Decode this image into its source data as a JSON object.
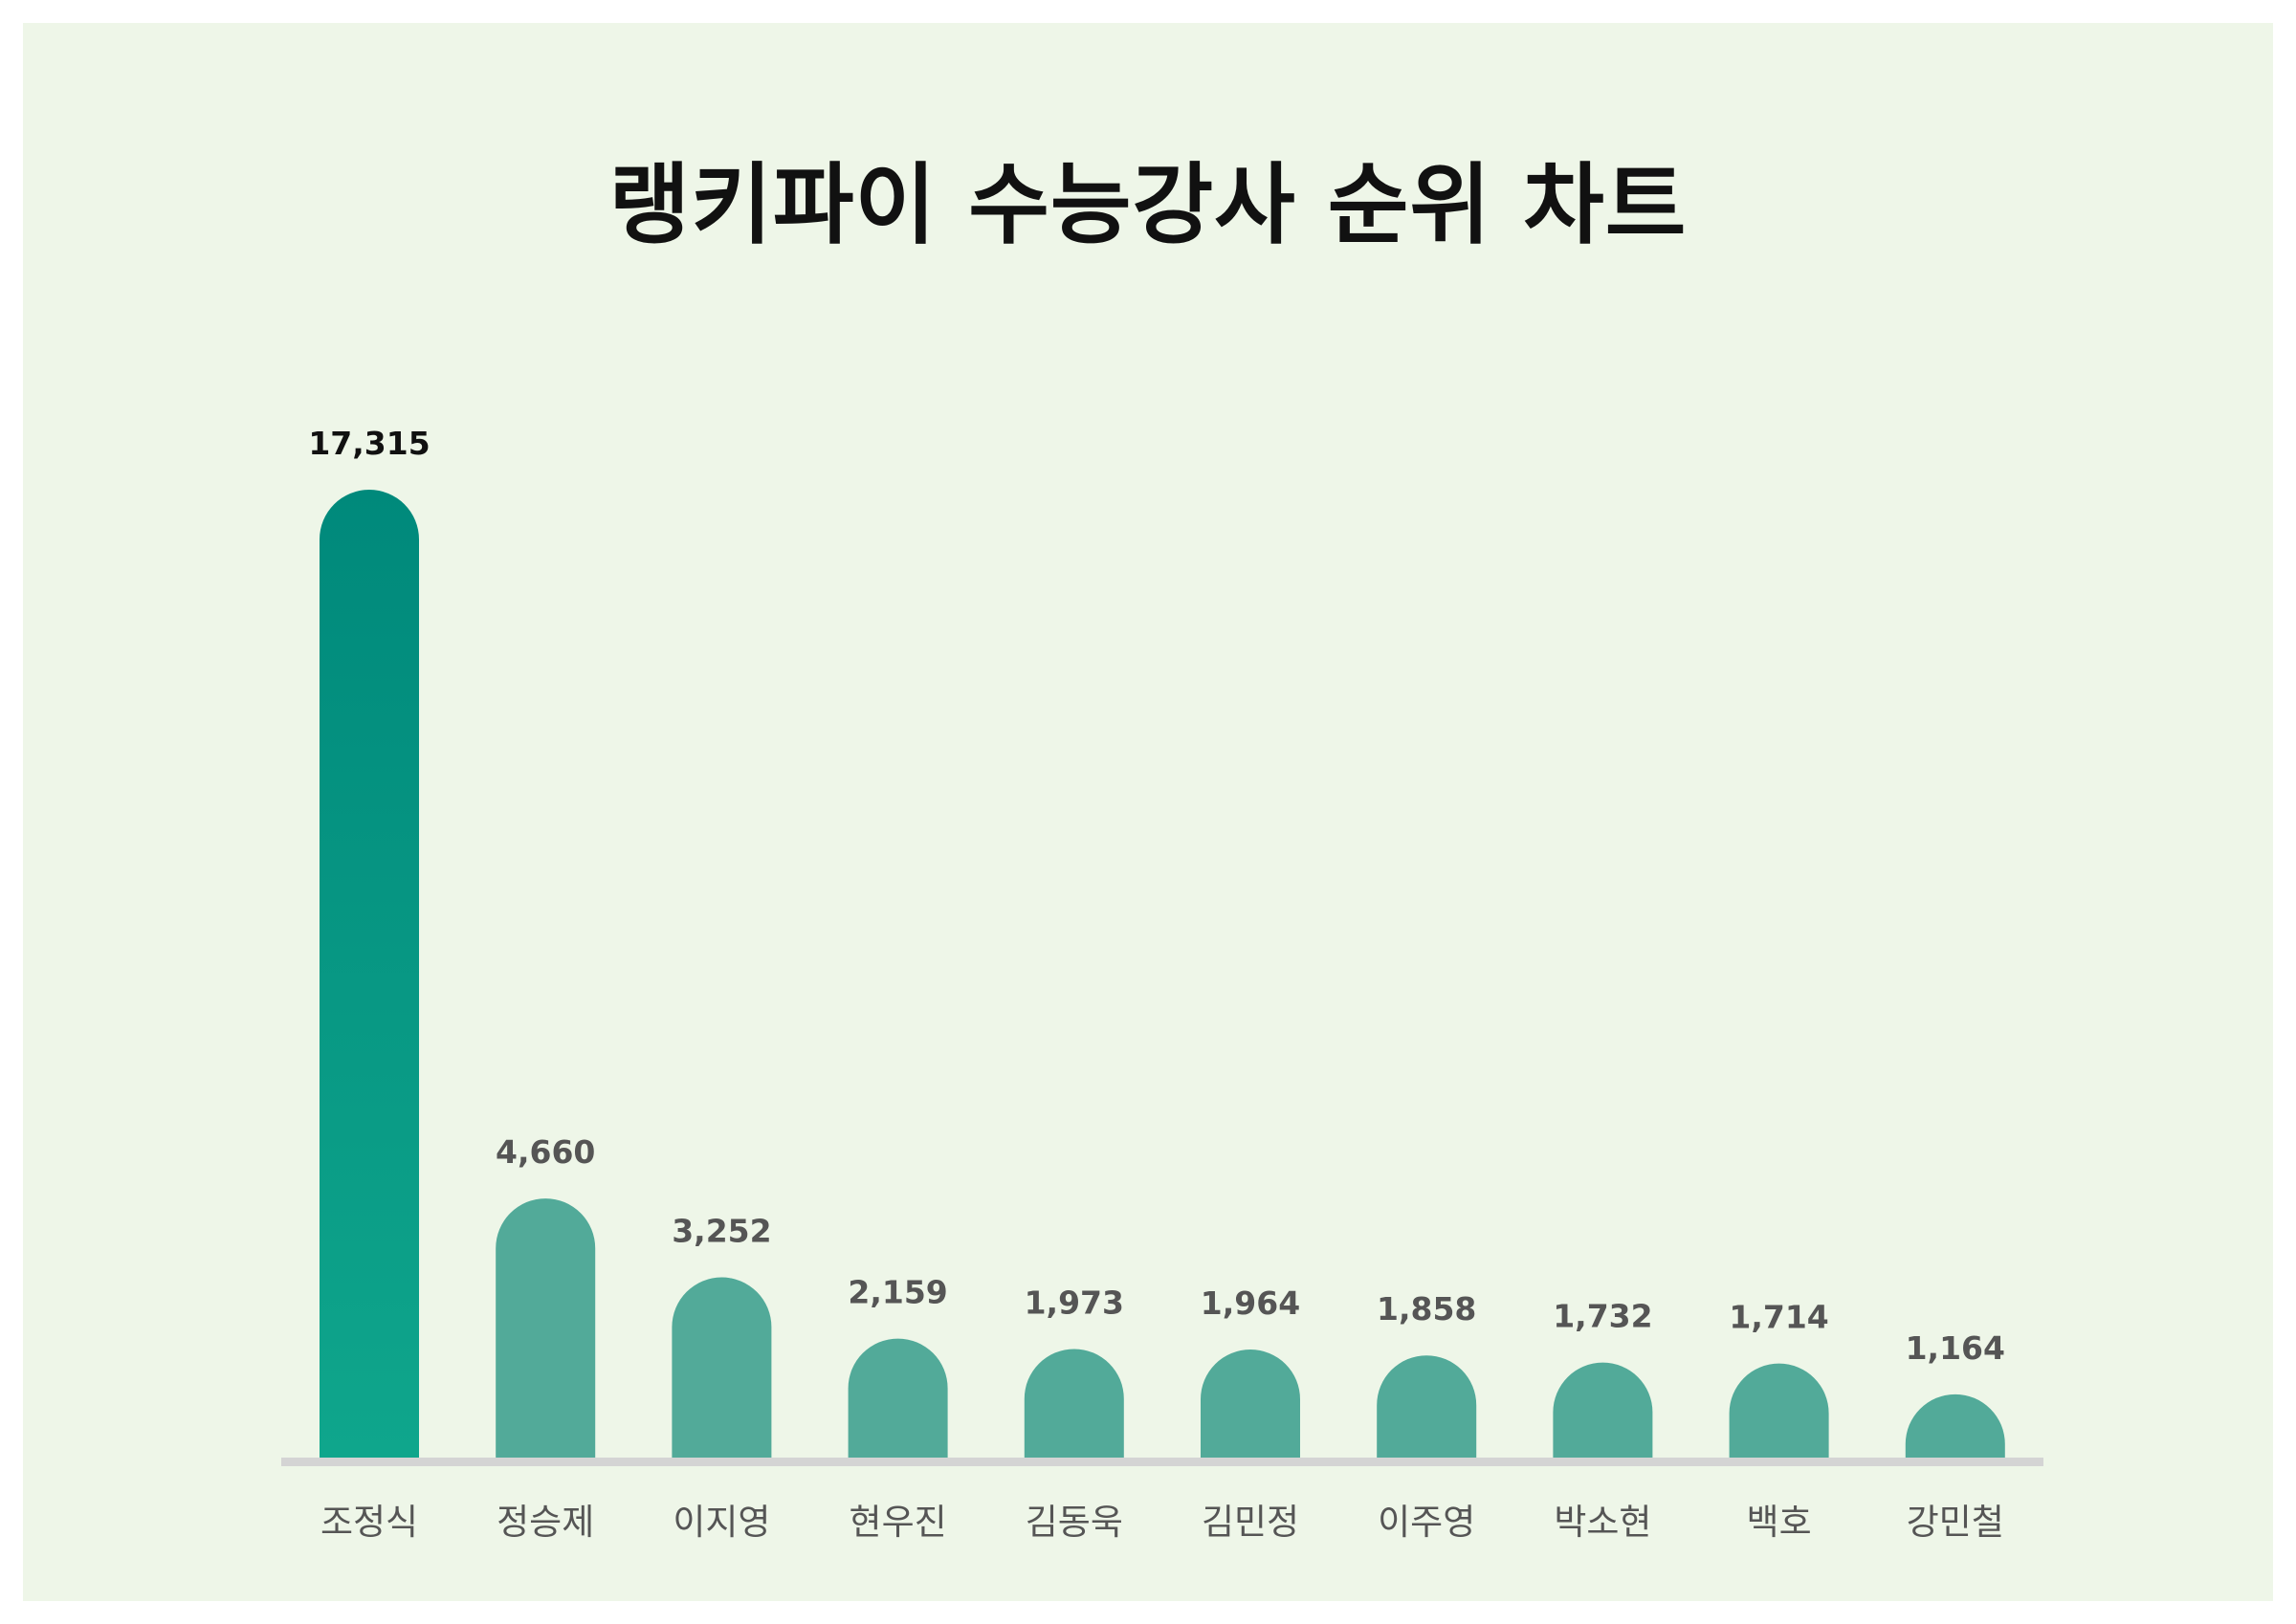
{
  "chart_data": {
    "type": "bar",
    "title": "랭키파이 수능강사 순위 차트",
    "categories": [
      "조정식",
      "정승제",
      "이지영",
      "현우진",
      "김동욱",
      "김민정",
      "이주영",
      "박소현",
      "백호",
      "강민철"
    ],
    "values": [
      17315,
      4660,
      3252,
      2159,
      1973,
      1964,
      1858,
      1732,
      1714,
      1164
    ],
    "value_labels": [
      "17,315",
      "4,660",
      "3,252",
      "2,159",
      "1,973",
      "1,964",
      "1,858",
      "1,732",
      "1,714",
      "1,164"
    ],
    "ylim": [
      0,
      17315
    ],
    "grid": false,
    "legend": "none",
    "colors": {
      "background": "#eef6e8",
      "bar": "#52aa99",
      "top_bar_gradient_top": "#00897b",
      "top_bar_gradient_bottom": "#0fa68c",
      "baseline": "#d4d4d4",
      "top_value_label": "#111111",
      "value_label": "#555555",
      "category_label": "#555555"
    }
  }
}
